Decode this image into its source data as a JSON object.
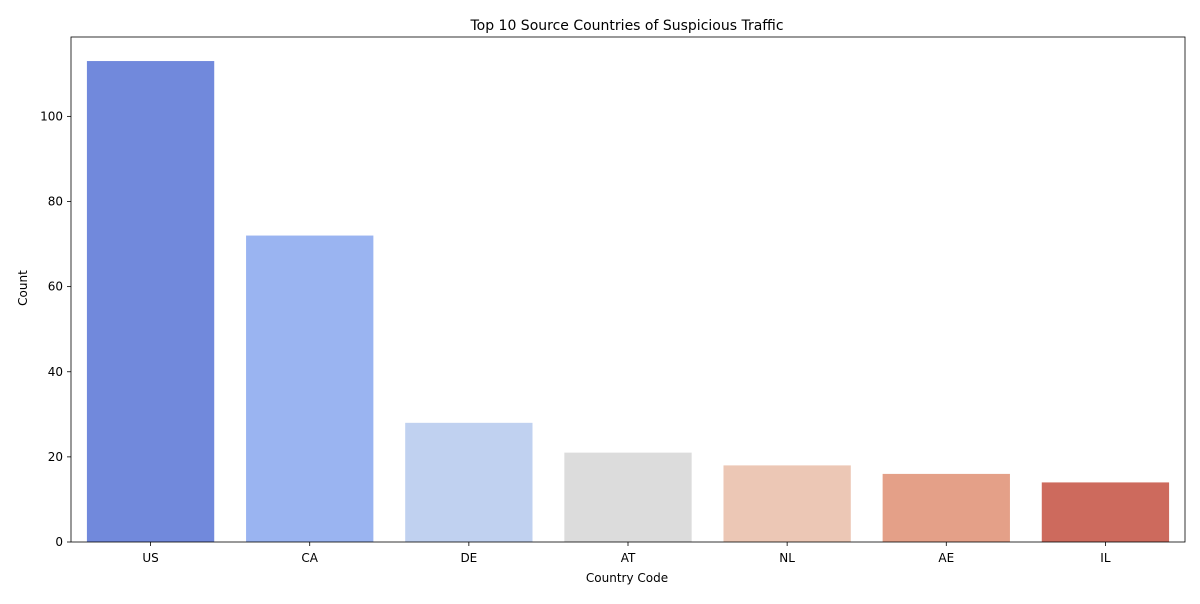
{
  "chart_data": {
    "type": "bar",
    "title": "Top 10 Source Countries of Suspicious Traffic",
    "xlabel": "Country Code",
    "ylabel": "Count",
    "categories": [
      "US",
      "CA",
      "DE",
      "AT",
      "NL",
      "AE",
      "IL"
    ],
    "values": [
      113,
      72,
      28,
      21,
      18,
      16,
      14
    ],
    "colors": [
      "#7189dc",
      "#9ab4f1",
      "#c0d1f0",
      "#dcdcdc",
      "#ecc7b5",
      "#e4a088",
      "#cd6a5d"
    ],
    "ylim": [
      0,
      118.65
    ],
    "yticks": [
      0,
      20,
      40,
      60,
      80,
      100
    ],
    "grid": false,
    "legend": "none"
  }
}
